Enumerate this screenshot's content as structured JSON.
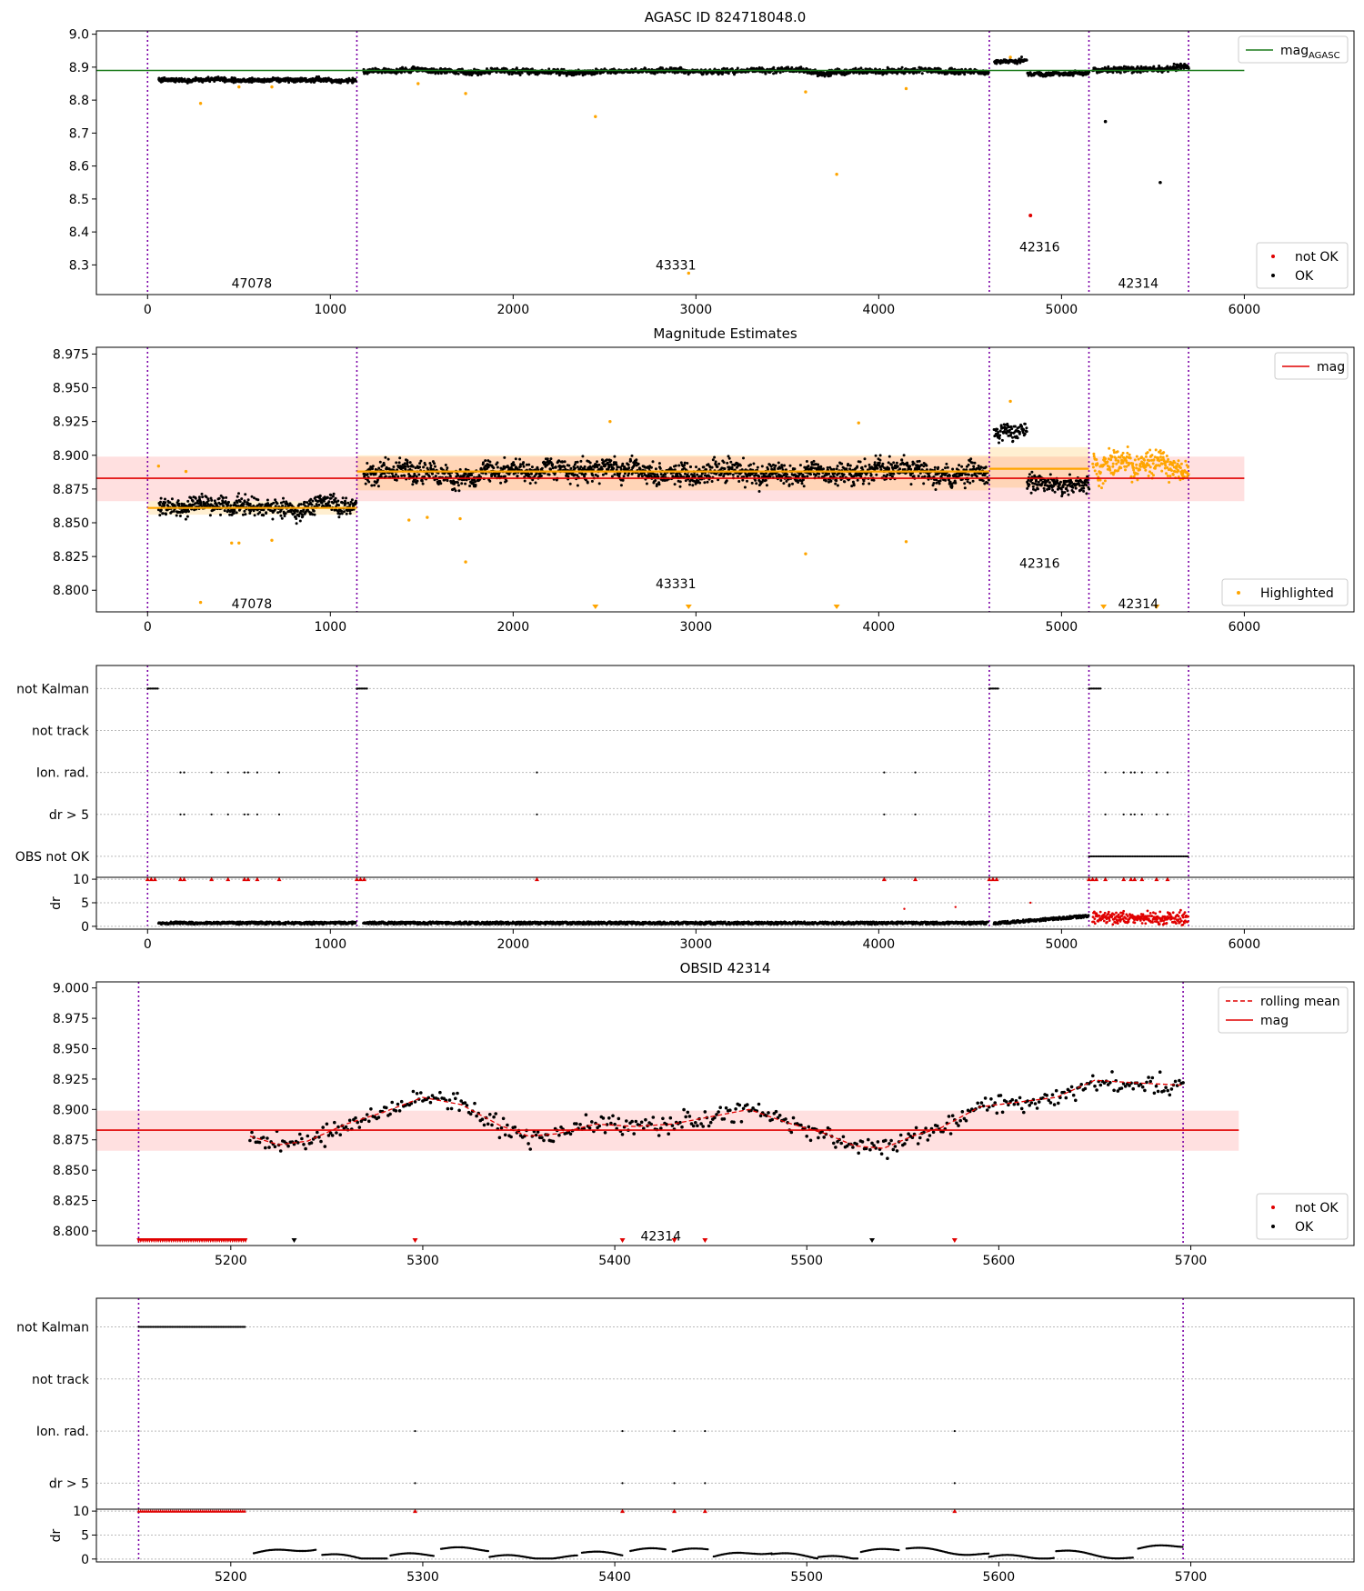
{
  "chart_data": [
    {
      "id": "p1",
      "type": "scatter",
      "title": "AGASC ID 824718048.0",
      "xlim": [
        -280,
        6600
      ],
      "ylim": [
        8.21,
        9.01
      ],
      "xticks": [
        0,
        1000,
        2000,
        3000,
        4000,
        5000,
        6000
      ],
      "yticks": [
        8.3,
        8.4,
        8.5,
        8.6,
        8.7,
        8.8,
        8.9,
        9.0
      ],
      "ytick_labels": [
        "8.3",
        "8.4",
        "8.5",
        "8.6",
        "8.7",
        "8.8",
        "8.9",
        "9.0"
      ],
      "obs_boundaries": [
        0,
        1145,
        4605,
        5150,
        5695
      ],
      "obs_labels": [
        {
          "text": "47078",
          "x": 570,
          "y": 8.245
        },
        {
          "text": "43331",
          "x": 2890,
          "y": 8.3
        },
        {
          "text": "42316",
          "x": 4880,
          "y": 8.355
        },
        {
          "text": "42314",
          "x": 5420,
          "y": 8.245
        }
      ],
      "lines": [
        {
          "name": "mag_AGASC",
          "y": 8.89,
          "x_range": [
            -280,
            6000
          ],
          "color": "#1a7a1a"
        }
      ],
      "segments": [
        {
          "x0": 60,
          "x1": 1140,
          "level": 8.862,
          "noise": 0.01
        },
        {
          "x0": 1180,
          "x1": 4600,
          "level": 8.887,
          "noise": 0.012
        },
        {
          "x0": 4630,
          "x1": 4810,
          "level": 8.918,
          "noise": 0.01
        },
        {
          "x0": 4810,
          "x1": 5150,
          "level": 8.88,
          "noise": 0.01
        },
        {
          "x0": 5170,
          "x1": 5695,
          "level": 8.895,
          "noise": 0.014
        }
      ],
      "orange_points": [
        [
          290,
          8.79
        ],
        [
          500,
          8.84
        ],
        [
          680,
          8.84
        ],
        [
          1480,
          8.85
        ],
        [
          1740,
          8.82
        ],
        [
          2450,
          8.75
        ],
        [
          2960,
          8.275
        ],
        [
          3600,
          8.825
        ],
        [
          3770,
          8.575
        ],
        [
          4150,
          8.835
        ],
        [
          4720,
          8.93
        ]
      ],
      "red_points": [
        [
          4830,
          8.45
        ]
      ],
      "outlier_points": [
        [
          5240,
          8.735
        ],
        [
          5540,
          8.55
        ]
      ],
      "legend_top": [
        {
          "label": "mag",
          "sub": "AGASC",
          "color": "#1a7a1a"
        }
      ],
      "legend_bottom": [
        {
          "label": "not OK",
          "color": "#e00000"
        },
        {
          "label": "OK",
          "color": "#000000"
        }
      ]
    },
    {
      "id": "p2",
      "type": "scatter",
      "title": "Magnitude Estimates",
      "xlim": [
        -280,
        6600
      ],
      "ylim": [
        8.784,
        8.98
      ],
      "xticks": [
        0,
        1000,
        2000,
        3000,
        4000,
        5000,
        6000
      ],
      "yticks": [
        8.8,
        8.825,
        8.85,
        8.875,
        8.9,
        8.925,
        8.95,
        8.975
      ],
      "ytick_labels": [
        "8.800",
        "8.825",
        "8.850",
        "8.875",
        "8.900",
        "8.925",
        "8.950",
        "8.975"
      ],
      "obs_boundaries": [
        0,
        1145,
        4605,
        5150,
        5695
      ],
      "obs_labels": [
        {
          "text": "47078",
          "x": 570,
          "y": 8.79
        },
        {
          "text": "43331",
          "x": 2890,
          "y": 8.805
        },
        {
          "text": "42316",
          "x": 4880,
          "y": 8.82
        },
        {
          "text": "42314",
          "x": 5420,
          "y": 8.79
        }
      ],
      "mag_line": {
        "y": 8.883,
        "band": [
          8.866,
          8.899
        ],
        "x_range": [
          -280,
          6000
        ]
      },
      "obs_means": [
        {
          "x0": 0,
          "x1": 1145,
          "y": 8.861,
          "band": [
            8.856,
            8.866
          ]
        },
        {
          "x0": 1145,
          "x1": 4605,
          "y": 8.888,
          "band": [
            8.874,
            8.9
          ]
        },
        {
          "x0": 4605,
          "x1": 5150,
          "y": 8.89,
          "band": [
            8.876,
            8.906
          ]
        }
      ],
      "segments": [
        {
          "x0": 60,
          "x1": 1140,
          "level": 8.862,
          "noise": 0.01,
          "color": "#000000"
        },
        {
          "x0": 1180,
          "x1": 4600,
          "level": 8.887,
          "noise": 0.012,
          "color": "#000000"
        },
        {
          "x0": 4630,
          "x1": 4810,
          "level": 8.918,
          "noise": 0.01,
          "color": "#000000"
        },
        {
          "x0": 4810,
          "x1": 5150,
          "level": 8.878,
          "noise": 0.01,
          "color": "#000000"
        },
        {
          "x0": 5170,
          "x1": 5695,
          "level": 8.895,
          "noise": 0.014,
          "color": "#ffa500"
        }
      ],
      "orange_points": [
        [
          60,
          8.892
        ],
        [
          210,
          8.888
        ],
        [
          290,
          8.791
        ],
        [
          460,
          8.835
        ],
        [
          500,
          8.835
        ],
        [
          680,
          8.837
        ],
        [
          1430,
          8.852
        ],
        [
          1530,
          8.854
        ],
        [
          1710,
          8.853
        ],
        [
          1740,
          8.821
        ],
        [
          2530,
          8.925
        ],
        [
          3600,
          8.827
        ],
        [
          3890,
          8.924
        ],
        [
          4150,
          8.836
        ],
        [
          4720,
          8.94
        ]
      ],
      "offscale_markers": [
        2450,
        2960,
        3770,
        5230,
        5520
      ],
      "legend_top": [
        {
          "label": "mag",
          "color": "#e00000"
        }
      ],
      "legend_bottom": [
        {
          "label": "Highlighted",
          "color": "#ffa500"
        }
      ]
    },
    {
      "id": "p3",
      "type": "scatter",
      "title": "",
      "xlim": [
        -280,
        6600
      ],
      "xticks": [
        0,
        1000,
        2000,
        3000,
        4000,
        5000,
        6000
      ],
      "obs_boundaries": [
        0,
        1145,
        4605,
        5150,
        5695
      ],
      "flag_rows": [
        "not Kalman",
        "not track",
        "Ion. rad.",
        "dr > 5",
        "OBS not OK"
      ],
      "flag_spans": [
        {
          "row": 0,
          "x0": 0,
          "x1": 60
        },
        {
          "row": 0,
          "x0": 1145,
          "x1": 1205
        },
        {
          "row": 0,
          "x0": 4605,
          "x1": 4660
        },
        {
          "row": 0,
          "x0": 5150,
          "x1": 5215
        },
        {
          "row": 4,
          "x0": 5150,
          "x1": 5695
        }
      ],
      "flag_points": [
        180,
        200,
        350,
        440,
        530,
        550,
        600,
        720,
        2130,
        4030,
        4200,
        5240,
        5340,
        5380,
        5400,
        5440,
        5520,
        5580
      ],
      "dr_ylim": [
        -0.6,
        10.4
      ],
      "dr_yticks": [
        0,
        5,
        10
      ],
      "dr_ylabel": "dr",
      "dr_segments": [
        {
          "x0": 60,
          "x1": 1140,
          "level": 0.7,
          "color": "#000000"
        },
        {
          "x0": 1180,
          "x1": 4600,
          "level": 0.7,
          "color": "#000000"
        },
        {
          "x0": 4630,
          "x1": 5150,
          "level": 1.2,
          "color": "#000000"
        },
        {
          "x0": 5170,
          "x1": 5695,
          "level": 1.8,
          "color": "#e00000"
        }
      ],
      "dr_extra_points": [
        [
          4140,
          3.7
        ],
        [
          4420,
          4.1
        ],
        [
          4830,
          5.0
        ]
      ],
      "dr_top_markers": [
        0,
        20,
        40,
        180,
        200,
        350,
        440,
        530,
        550,
        600,
        720,
        1145,
        1165,
        1185,
        2130,
        4030,
        4200,
        4605,
        4625,
        4645,
        5150,
        5170,
        5190,
        5240,
        5340,
        5380,
        5400,
        5440,
        5520,
        5580
      ]
    },
    {
      "id": "p4",
      "type": "scatter",
      "title": "OBSID 42314",
      "xlim": [
        5130,
        5785
      ],
      "ylim": [
        8.788,
        9.005
      ],
      "xticks": [
        5200,
        5300,
        5400,
        5500,
        5600,
        5700
      ],
      "yticks": [
        8.8,
        8.825,
        8.85,
        8.875,
        8.9,
        8.925,
        8.95,
        8.975,
        9.0
      ],
      "ytick_labels": [
        "8.800",
        "8.825",
        "8.850",
        "8.875",
        "8.900",
        "8.925",
        "8.950",
        "8.975",
        "9.000"
      ],
      "obs_boundaries": [
        5152,
        5696
      ],
      "obs_labels": [
        {
          "text": "42314",
          "x": 5424,
          "y": 8.796
        }
      ],
      "mag_line": {
        "y": 8.883,
        "band": [
          8.866,
          8.899
        ],
        "x_range": [
          5130,
          5725
        ]
      },
      "rolling_knots": [
        [
          5210,
          8.878
        ],
        [
          5225,
          8.871
        ],
        [
          5240,
          8.874
        ],
        [
          5260,
          8.888
        ],
        [
          5280,
          8.898
        ],
        [
          5300,
          8.91
        ],
        [
          5320,
          8.904
        ],
        [
          5340,
          8.887
        ],
        [
          5355,
          8.878
        ],
        [
          5370,
          8.88
        ],
        [
          5390,
          8.888
        ],
        [
          5410,
          8.886
        ],
        [
          5430,
          8.888
        ],
        [
          5450,
          8.894
        ],
        [
          5470,
          8.9
        ],
        [
          5490,
          8.889
        ],
        [
          5510,
          8.88
        ],
        [
          5525,
          8.87
        ],
        [
          5540,
          8.868
        ],
        [
          5555,
          8.878
        ],
        [
          5570,
          8.885
        ],
        [
          5590,
          8.902
        ],
        [
          5610,
          8.906
        ],
        [
          5630,
          8.91
        ],
        [
          5650,
          8.924
        ],
        [
          5670,
          8.922
        ],
        [
          5695,
          8.92
        ]
      ],
      "red_flag_range": [
        5152,
        5208
      ],
      "tri_markers": [
        {
          "x": 5233,
          "color": "#000000"
        },
        {
          "x": 5296,
          "color": "#e00000"
        },
        {
          "x": 5404,
          "color": "#e00000"
        },
        {
          "x": 5431,
          "color": "#e00000"
        },
        {
          "x": 5447,
          "color": "#e00000"
        },
        {
          "x": 5534,
          "color": "#000000"
        },
        {
          "x": 5577,
          "color": "#e00000"
        }
      ],
      "legend_top": [
        {
          "label": "rolling mean",
          "color": "#e00000",
          "dashed": true
        },
        {
          "label": "mag",
          "color": "#e00000",
          "dashed": false
        }
      ],
      "legend_bottom": [
        {
          "label": "not OK",
          "color": "#e00000"
        },
        {
          "label": "OK",
          "color": "#000000"
        }
      ]
    },
    {
      "id": "p5",
      "type": "scatter",
      "title": "",
      "xlim": [
        5130,
        5785
      ],
      "xticks": [
        5200,
        5300,
        5400,
        5500,
        5600,
        5700
      ],
      "obs_boundaries": [
        5152,
        5696
      ],
      "flag_rows": [
        "not Kalman",
        "not track",
        "Ion. rad.",
        "dr > 5"
      ],
      "flag_spans": [
        {
          "row": 0,
          "x0": 5152,
          "x1": 5208
        }
      ],
      "flag_points": [
        5296,
        5404,
        5431,
        5447,
        5577
      ],
      "dr_ylim": [
        -0.6,
        10.4
      ],
      "dr_yticks": [
        0,
        5,
        10
      ],
      "dr_ylabel": "dr",
      "dr_top_range": [
        5152,
        5208
      ],
      "dr_top_markers": [
        5296,
        5404,
        5431,
        5447,
        5577
      ]
    }
  ]
}
